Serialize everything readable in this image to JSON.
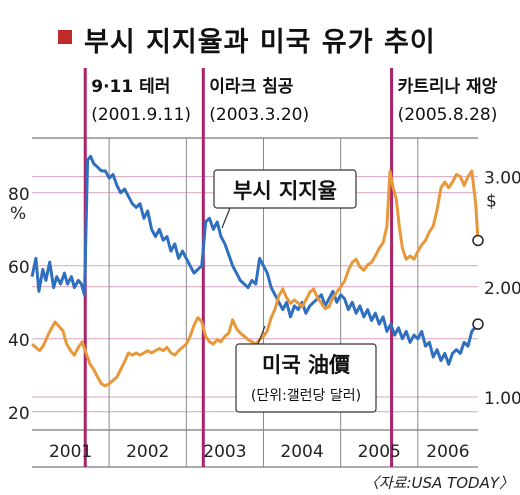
{
  "title": "부시 지지율과 미국 유가 추이",
  "source": "〈자료:USA TODAY〉",
  "colors": {
    "approval": "#2f6fc0",
    "oil": "#e8983a",
    "accent": "#a8236a",
    "grid": "#d9a3c0",
    "bar": "#c12a2a"
  },
  "chart_data": {
    "type": "line",
    "title": "부시 지지율과 미국 유가 추이",
    "x_ticks": [
      "2001",
      "2002",
      "2003",
      "2004",
      "2005",
      "2006"
    ],
    "y_left": {
      "unit": "%",
      "ticks": [
        20,
        40,
        60,
        80
      ],
      "range": [
        15,
        95
      ]
    },
    "y_right": {
      "unit": "$",
      "ticks": [
        "1.00",
        "2.00",
        "3.00"
      ],
      "range": [
        0.7,
        3.35
      ]
    },
    "events": [
      {
        "label": "9·11 테러",
        "date": "(2001.9.11)",
        "x": 2001.69
      },
      {
        "label": "이라크 침공",
        "date": "(2003.3.20)",
        "x": 2003.22
      },
      {
        "label": "카트리나 재앙",
        "date": "(2005.8.28)",
        "x": 2005.66
      }
    ],
    "series": [
      {
        "name": "부시 지지율",
        "axis": "left",
        "points": [
          [
            2001.0,
            57
          ],
          [
            2001.05,
            62
          ],
          [
            2001.09,
            53
          ],
          [
            2001.14,
            59
          ],
          [
            2001.18,
            56
          ],
          [
            2001.23,
            61
          ],
          [
            2001.28,
            54
          ],
          [
            2001.32,
            57
          ],
          [
            2001.37,
            55
          ],
          [
            2001.42,
            58
          ],
          [
            2001.46,
            55
          ],
          [
            2001.51,
            57
          ],
          [
            2001.55,
            54
          ],
          [
            2001.6,
            56
          ],
          [
            2001.64,
            55
          ],
          [
            2001.68,
            52
          ],
          [
            2001.72,
            89
          ],
          [
            2001.76,
            90
          ],
          [
            2001.8,
            88
          ],
          [
            2001.85,
            87
          ],
          [
            2001.9,
            86
          ],
          [
            2001.95,
            86
          ],
          [
            2002.0,
            84
          ],
          [
            2002.05,
            85
          ],
          [
            2002.1,
            82
          ],
          [
            2002.15,
            80
          ],
          [
            2002.2,
            81
          ],
          [
            2002.25,
            79
          ],
          [
            2002.3,
            77
          ],
          [
            2002.35,
            76
          ],
          [
            2002.4,
            77
          ],
          [
            2002.45,
            73
          ],
          [
            2002.5,
            75
          ],
          [
            2002.55,
            70
          ],
          [
            2002.6,
            68
          ],
          [
            2002.65,
            70
          ],
          [
            2002.7,
            67
          ],
          [
            2002.75,
            68
          ],
          [
            2002.8,
            64
          ],
          [
            2002.85,
            66
          ],
          [
            2002.9,
            62
          ],
          [
            2002.95,
            64
          ],
          [
            2003.0,
            62
          ],
          [
            2003.05,
            60
          ],
          [
            2003.1,
            58
          ],
          [
            2003.15,
            59
          ],
          [
            2003.2,
            60
          ],
          [
            2003.25,
            72
          ],
          [
            2003.3,
            73
          ],
          [
            2003.35,
            70
          ],
          [
            2003.4,
            72
          ],
          [
            2003.45,
            68
          ],
          [
            2003.5,
            66
          ],
          [
            2003.55,
            63
          ],
          [
            2003.6,
            60
          ],
          [
            2003.65,
            58
          ],
          [
            2003.7,
            56
          ],
          [
            2003.75,
            55
          ],
          [
            2003.8,
            54
          ],
          [
            2003.85,
            56
          ],
          [
            2003.9,
            55
          ],
          [
            2003.95,
            62
          ],
          [
            2004.0,
            60
          ],
          [
            2004.05,
            58
          ],
          [
            2004.1,
            54
          ],
          [
            2004.15,
            52
          ],
          [
            2004.2,
            50
          ],
          [
            2004.25,
            48
          ],
          [
            2004.3,
            50
          ],
          [
            2004.35,
            46
          ],
          [
            2004.4,
            49
          ],
          [
            2004.45,
            48
          ],
          [
            2004.5,
            50
          ],
          [
            2004.55,
            47
          ],
          [
            2004.6,
            49
          ],
          [
            2004.65,
            50
          ],
          [
            2004.7,
            51
          ],
          [
            2004.75,
            52
          ],
          [
            2004.8,
            49
          ],
          [
            2004.85,
            51
          ],
          [
            2004.9,
            53
          ],
          [
            2004.95,
            50
          ],
          [
            2005.0,
            52
          ],
          [
            2005.05,
            51
          ],
          [
            2005.1,
            48
          ],
          [
            2005.15,
            50
          ],
          [
            2005.2,
            47
          ],
          [
            2005.25,
            49
          ],
          [
            2005.3,
            46
          ],
          [
            2005.35,
            48
          ],
          [
            2005.4,
            45
          ],
          [
            2005.45,
            47
          ],
          [
            2005.5,
            44
          ],
          [
            2005.55,
            46
          ],
          [
            2005.6,
            42
          ],
          [
            2005.65,
            44
          ],
          [
            2005.7,
            41
          ],
          [
            2005.75,
            43
          ],
          [
            2005.8,
            40
          ],
          [
            2005.85,
            42
          ],
          [
            2005.9,
            39
          ],
          [
            2005.95,
            41
          ],
          [
            2006.0,
            40
          ],
          [
            2006.05,
            42
          ],
          [
            2006.1,
            38
          ],
          [
            2006.15,
            39
          ],
          [
            2006.2,
            35
          ],
          [
            2006.25,
            37
          ],
          [
            2006.3,
            34
          ],
          [
            2006.35,
            36
          ],
          [
            2006.4,
            33
          ],
          [
            2006.45,
            36
          ],
          [
            2006.5,
            37
          ],
          [
            2006.55,
            36
          ],
          [
            2006.6,
            39
          ],
          [
            2006.65,
            38
          ],
          [
            2006.7,
            42
          ],
          [
            2006.78,
            44
          ]
        ]
      },
      {
        "name": "미국 油價",
        "sublabel": "(단위:갤런당 달러)",
        "axis": "right",
        "points": [
          [
            2001.0,
            1.48
          ],
          [
            2001.05,
            1.45
          ],
          [
            2001.1,
            1.42
          ],
          [
            2001.15,
            1.47
          ],
          [
            2001.2,
            1.55
          ],
          [
            2001.25,
            1.62
          ],
          [
            2001.3,
            1.68
          ],
          [
            2001.35,
            1.64
          ],
          [
            2001.4,
            1.6
          ],
          [
            2001.45,
            1.48
          ],
          [
            2001.5,
            1.42
          ],
          [
            2001.55,
            1.38
          ],
          [
            2001.6,
            1.45
          ],
          [
            2001.65,
            1.5
          ],
          [
            2001.7,
            1.4
          ],
          [
            2001.75,
            1.3
          ],
          [
            2001.8,
            1.25
          ],
          [
            2001.85,
            1.18
          ],
          [
            2001.9,
            1.12
          ],
          [
            2001.95,
            1.1
          ],
          [
            2002.0,
            1.12
          ],
          [
            2002.05,
            1.15
          ],
          [
            2002.1,
            1.18
          ],
          [
            2002.15,
            1.25
          ],
          [
            2002.2,
            1.32
          ],
          [
            2002.25,
            1.4
          ],
          [
            2002.3,
            1.38
          ],
          [
            2002.35,
            1.4
          ],
          [
            2002.4,
            1.38
          ],
          [
            2002.45,
            1.4
          ],
          [
            2002.5,
            1.42
          ],
          [
            2002.55,
            1.4
          ],
          [
            2002.6,
            1.42
          ],
          [
            2002.65,
            1.44
          ],
          [
            2002.7,
            1.42
          ],
          [
            2002.75,
            1.45
          ],
          [
            2002.8,
            1.4
          ],
          [
            2002.85,
            1.38
          ],
          [
            2002.9,
            1.42
          ],
          [
            2002.95,
            1.45
          ],
          [
            2003.0,
            1.48
          ],
          [
            2003.05,
            1.55
          ],
          [
            2003.1,
            1.65
          ],
          [
            2003.15,
            1.72
          ],
          [
            2003.2,
            1.68
          ],
          [
            2003.25,
            1.55
          ],
          [
            2003.3,
            1.5
          ],
          [
            2003.35,
            1.48
          ],
          [
            2003.4,
            1.52
          ],
          [
            2003.45,
            1.5
          ],
          [
            2003.5,
            1.55
          ],
          [
            2003.55,
            1.58
          ],
          [
            2003.6,
            1.7
          ],
          [
            2003.65,
            1.62
          ],
          [
            2003.7,
            1.58
          ],
          [
            2003.75,
            1.55
          ],
          [
            2003.8,
            1.52
          ],
          [
            2003.85,
            1.5
          ],
          [
            2003.9,
            1.48
          ],
          [
            2003.95,
            1.52
          ],
          [
            2004.0,
            1.55
          ],
          [
            2004.05,
            1.6
          ],
          [
            2004.1,
            1.72
          ],
          [
            2004.15,
            1.8
          ],
          [
            2004.2,
            1.92
          ],
          [
            2004.25,
            1.98
          ],
          [
            2004.3,
            1.9
          ],
          [
            2004.35,
            1.85
          ],
          [
            2004.4,
            1.88
          ],
          [
            2004.45,
            1.85
          ],
          [
            2004.5,
            1.82
          ],
          [
            2004.55,
            1.88
          ],
          [
            2004.6,
            1.95
          ],
          [
            2004.65,
            1.98
          ],
          [
            2004.7,
            1.9
          ],
          [
            2004.75,
            1.85
          ],
          [
            2004.8,
            1.8
          ],
          [
            2004.85,
            1.82
          ],
          [
            2004.9,
            1.9
          ],
          [
            2004.95,
            1.95
          ],
          [
            2005.0,
            2.0
          ],
          [
            2005.05,
            2.05
          ],
          [
            2005.1,
            2.15
          ],
          [
            2005.15,
            2.22
          ],
          [
            2005.2,
            2.25
          ],
          [
            2005.25,
            2.18
          ],
          [
            2005.3,
            2.15
          ],
          [
            2005.35,
            2.2
          ],
          [
            2005.4,
            2.22
          ],
          [
            2005.45,
            2.28
          ],
          [
            2005.5,
            2.35
          ],
          [
            2005.55,
            2.4
          ],
          [
            2005.6,
            2.55
          ],
          [
            2005.64,
            3.05
          ],
          [
            2005.68,
            2.9
          ],
          [
            2005.72,
            2.8
          ],
          [
            2005.76,
            2.55
          ],
          [
            2005.8,
            2.35
          ],
          [
            2005.85,
            2.25
          ],
          [
            2005.9,
            2.28
          ],
          [
            2005.95,
            2.25
          ],
          [
            2006.0,
            2.32
          ],
          [
            2006.05,
            2.38
          ],
          [
            2006.1,
            2.42
          ],
          [
            2006.15,
            2.5
          ],
          [
            2006.2,
            2.55
          ],
          [
            2006.25,
            2.7
          ],
          [
            2006.3,
            2.9
          ],
          [
            2006.35,
            2.95
          ],
          [
            2006.4,
            2.9
          ],
          [
            2006.45,
            2.95
          ],
          [
            2006.5,
            3.02
          ],
          [
            2006.55,
            3.0
          ],
          [
            2006.6,
            2.92
          ],
          [
            2006.65,
            3.0
          ],
          [
            2006.7,
            3.05
          ],
          [
            2006.75,
            2.75
          ],
          [
            2006.78,
            2.42
          ]
        ]
      }
    ]
  }
}
